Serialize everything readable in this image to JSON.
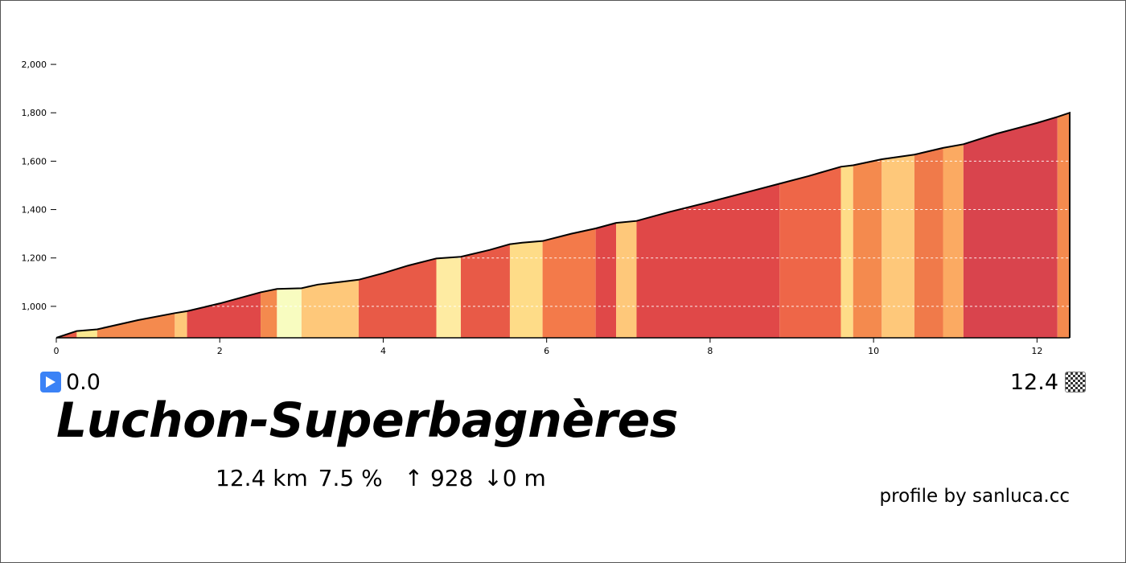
{
  "chart_data": {
    "type": "area",
    "title": "Luchon-Superbagnères",
    "xlabel": "",
    "ylabel": "",
    "x_range": [
      0,
      12.4
    ],
    "y_range": [
      870,
      2070
    ],
    "x_ticks": [
      0,
      2,
      4,
      6,
      8,
      10,
      12
    ],
    "y_ticks": [
      1000,
      1200,
      1400,
      1600,
      1800,
      2000
    ],
    "y_tick_labels": [
      "1,000",
      "1,200",
      "1,400",
      "1,600",
      "1,800",
      "2,000"
    ],
    "grid": "horizontal dashed",
    "profile": {
      "x": [
        0,
        0.25,
        0.5,
        1.0,
        1.45,
        1.6,
        2.0,
        2.5,
        2.7,
        3.0,
        3.2,
        3.5,
        3.7,
        4.0,
        4.3,
        4.65,
        4.95,
        5.3,
        5.55,
        5.7,
        5.95,
        6.3,
        6.6,
        6.85,
        7.1,
        7.5,
        8.0,
        8.5,
        8.85,
        9.2,
        9.6,
        9.75,
        10.1,
        10.5,
        10.85,
        11.1,
        11.5,
        12.0,
        12.25,
        12.4
      ],
      "y": [
        870,
        898,
        905,
        943,
        972,
        980,
        1012,
        1058,
        1072,
        1075,
        1090,
        1102,
        1110,
        1137,
        1168,
        1198,
        1205,
        1233,
        1257,
        1263,
        1270,
        1300,
        1322,
        1345,
        1353,
        1390,
        1432,
        1476,
        1507,
        1538,
        1577,
        1583,
        1608,
        1627,
        1655,
        1670,
        1713,
        1758,
        1783,
        1800
      ]
    },
    "segments": [
      {
        "from": 0.0,
        "to": 0.25,
        "color": "#e85a47"
      },
      {
        "from": 0.25,
        "to": 0.5,
        "color": "#fbe890"
      },
      {
        "from": 0.5,
        "to": 1.45,
        "color": "#f48a4e"
      },
      {
        "from": 1.45,
        "to": 1.6,
        "color": "#fec87a"
      },
      {
        "from": 1.6,
        "to": 2.5,
        "color": "#e04848"
      },
      {
        "from": 2.5,
        "to": 2.7,
        "color": "#f48a4e"
      },
      {
        "from": 2.7,
        "to": 3.0,
        "color": "#f8fcc0"
      },
      {
        "from": 3.0,
        "to": 3.7,
        "color": "#fec87a"
      },
      {
        "from": 3.7,
        "to": 4.65,
        "color": "#e85a47"
      },
      {
        "from": 4.65,
        "to": 4.95,
        "color": "#feeba2"
      },
      {
        "from": 4.95,
        "to": 5.55,
        "color": "#e85a47"
      },
      {
        "from": 5.55,
        "to": 5.95,
        "color": "#fedc88"
      },
      {
        "from": 5.95,
        "to": 6.6,
        "color": "#f37a4a"
      },
      {
        "from": 6.6,
        "to": 6.85,
        "color": "#e04848"
      },
      {
        "from": 6.85,
        "to": 7.1,
        "color": "#fec87a"
      },
      {
        "from": 7.1,
        "to": 8.85,
        "color": "#e04848"
      },
      {
        "from": 8.85,
        "to": 9.6,
        "color": "#ee6648"
      },
      {
        "from": 9.6,
        "to": 9.75,
        "color": "#fedc88"
      },
      {
        "from": 9.75,
        "to": 10.1,
        "color": "#f48a4e"
      },
      {
        "from": 10.1,
        "to": 10.5,
        "color": "#fec87a"
      },
      {
        "from": 10.5,
        "to": 10.85,
        "color": "#f07a4a"
      },
      {
        "from": 10.85,
        "to": 11.1,
        "color": "#fbaa62"
      },
      {
        "from": 11.1,
        "to": 12.25,
        "color": "#d9444d"
      },
      {
        "from": 12.25,
        "to": 12.4,
        "color": "#f48a4e"
      }
    ]
  },
  "markers": {
    "start_value": "0.0",
    "end_value": "12.4",
    "start_icon": "play-icon",
    "end_icon": "checkered-flag-icon"
  },
  "title": "Luchon-Superbagnères",
  "stats": {
    "distance": "12.4 km",
    "gradient": "7.5 %",
    "ascent": "↑ 928",
    "descent": "↓0 m"
  },
  "credit": "profile by sanluca.cc",
  "colors": {
    "play_icon": "#3b82f6",
    "outline": "#000000",
    "grid": "#ffffff"
  }
}
